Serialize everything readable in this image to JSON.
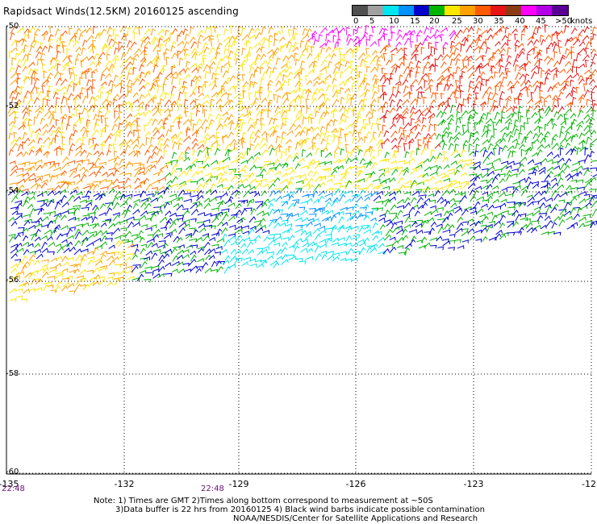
{
  "title": "Rapidsact Winds(12.5KM) 20160125 ascending",
  "legend": {
    "colors": [
      "#505050",
      "#a0a0a0",
      "#00e6f0",
      "#0090ff",
      "#0000cd",
      "#00b400",
      "#ffe600",
      "#ffa000",
      "#ff5a00",
      "#e61414",
      "#8b3a14",
      "#ff00ff",
      "#b400e6",
      "#5a0096"
    ],
    "labels": [
      "0",
      "5",
      "10",
      "15",
      "20",
      "25",
      "30",
      "35",
      "40",
      "45",
      ">50"
    ],
    "unit": "knots"
  },
  "map": {
    "lon_labels": [
      "-135",
      "-132",
      "-129",
      "-126",
      "-123",
      "-12"
    ],
    "lat_labels": [
      "-50",
      "-52",
      "-54",
      "-56",
      "-58",
      "-60"
    ],
    "time_labels": [
      "22:48",
      "22:48"
    ],
    "grid": "dotted"
  },
  "notes": {
    "line1": "Note: 1) Times are GMT 2)Times along bottom correspond to measurement at ~50S",
    "line2": "3)Data buffer is 22 hrs from 20160125 4) Black wind barbs indicate possible contamination",
    "line3": "NOAA/NESDIS/Center for Satellite Applications and Research"
  }
}
